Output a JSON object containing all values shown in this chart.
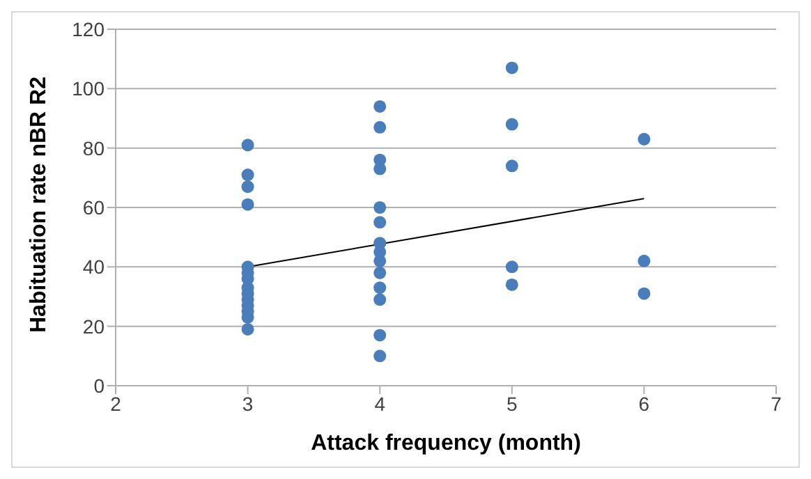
{
  "chart_data": {
    "type": "scatter",
    "xlabel": "Attack frequency (month)",
    "ylabel": "Habituation rate nBR R2",
    "xlim": [
      2,
      7
    ],
    "xticks": [
      2,
      3,
      4,
      5,
      6,
      7
    ],
    "ylim": [
      0,
      120
    ],
    "yticks": [
      0,
      20,
      40,
      60,
      80,
      100,
      120
    ],
    "grid": "y",
    "series": [
      {
        "color": "#4a7ebb",
        "marker": "circle",
        "x": [
          3,
          3,
          3,
          3,
          3,
          3,
          3,
          3,
          3,
          3,
          3,
          3,
          3,
          3,
          4,
          4,
          4,
          4,
          4,
          4,
          4,
          4,
          4,
          4,
          4,
          4,
          4,
          4,
          5,
          5,
          5,
          5,
          5,
          6,
          6,
          6
        ],
        "values": [
          81,
          71,
          67,
          61,
          40,
          38,
          36,
          33,
          31,
          29,
          27,
          25,
          23,
          19,
          94,
          87,
          76,
          73,
          60,
          55,
          48,
          45,
          42,
          38,
          33,
          29,
          17,
          10,
          107,
          88,
          74,
          40,
          34,
          83,
          42,
          31
        ]
      },
      {
        "type": "line",
        "color": "#000000",
        "x": [
          3,
          6
        ],
        "values": [
          40,
          63
        ],
        "line_style": "solid",
        "marker": "none"
      }
    ]
  }
}
